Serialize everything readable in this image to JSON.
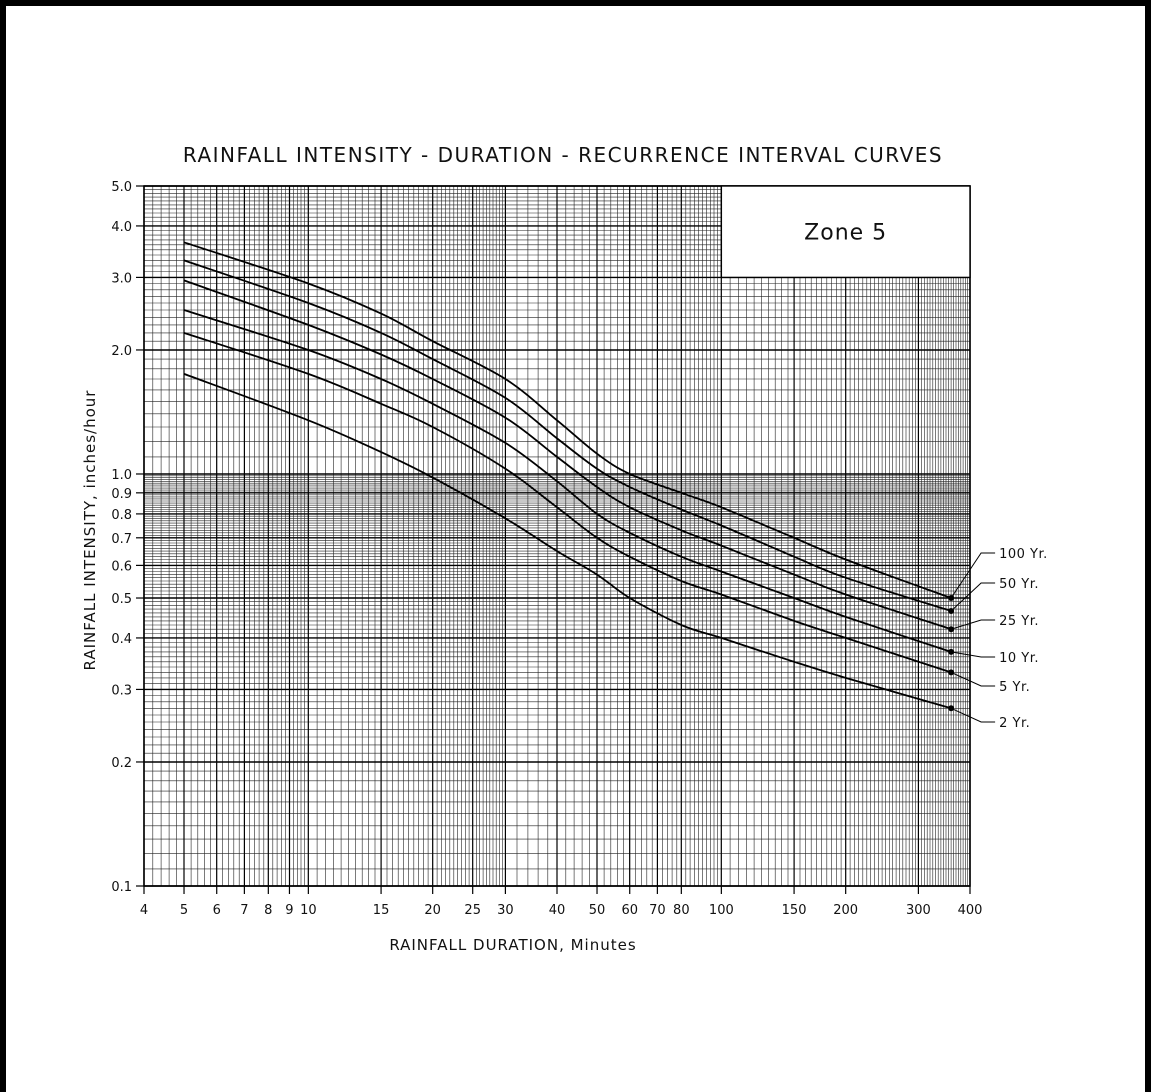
{
  "chart_data": {
    "type": "line",
    "title": "RAINFALL INTENSITY - DURATION - RECURRENCE INTERVAL CURVES",
    "xlabel": "RAINFALL DURATION, Minutes",
    "ylabel": "RAINFALL INTENSITY, inches/hour",
    "xscale": "log",
    "yscale": "log",
    "xlim": [
      4,
      400
    ],
    "ylim": [
      0.1,
      5.0
    ],
    "grid": true,
    "x_ticks": [
      "4",
      "5",
      "6",
      "7",
      "8",
      "9",
      "10",
      "15",
      "20",
      "25",
      "30",
      "40",
      "50",
      "60",
      "70",
      "80",
      "100",
      "150",
      "200",
      "300",
      "400"
    ],
    "y_ticks": [
      "0.1",
      "0.2",
      "0.3",
      "0.4",
      "0.5",
      "0.6",
      "0.7",
      "0.8",
      "0.9",
      "1.0",
      "2.0",
      "3.0",
      "4.0",
      "5.0"
    ],
    "inset_label": "Zone 5",
    "x": [
      5,
      10,
      15,
      20,
      30,
      40,
      50,
      60,
      80,
      100,
      150,
      200,
      360
    ],
    "series": [
      {
        "name": "100 Yr.",
        "values": [
          3.65,
          2.9,
          2.45,
          2.1,
          1.7,
          1.35,
          1.12,
          1.0,
          0.9,
          0.83,
          0.7,
          0.62,
          0.5
        ]
      },
      {
        "name": "50 Yr.",
        "values": [
          3.3,
          2.6,
          2.2,
          1.9,
          1.53,
          1.22,
          1.03,
          0.93,
          0.82,
          0.75,
          0.63,
          0.56,
          0.465
        ]
      },
      {
        "name": "25 Yr.",
        "values": [
          2.95,
          2.3,
          1.95,
          1.7,
          1.37,
          1.1,
          0.93,
          0.83,
          0.73,
          0.67,
          0.57,
          0.51,
          0.42
        ]
      },
      {
        "name": "10 Yr.",
        "values": [
          2.5,
          2.0,
          1.7,
          1.48,
          1.19,
          0.96,
          0.8,
          0.72,
          0.63,
          0.58,
          0.5,
          0.45,
          0.37
        ]
      },
      {
        "name": "5 Yr.",
        "values": [
          2.2,
          1.75,
          1.48,
          1.3,
          1.03,
          0.83,
          0.7,
          0.63,
          0.55,
          0.51,
          0.44,
          0.4,
          0.33
        ]
      },
      {
        "name": "2 Yr.",
        "values": [
          1.75,
          1.35,
          1.13,
          0.98,
          0.78,
          0.65,
          0.57,
          0.5,
          0.43,
          0.4,
          0.35,
          0.32,
          0.27
        ]
      }
    ]
  }
}
